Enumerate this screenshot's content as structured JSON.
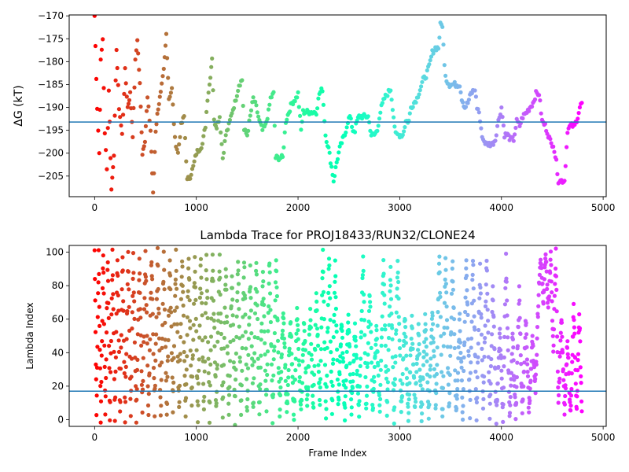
{
  "chart_data": [
    {
      "type": "scatter",
      "title": "",
      "xlabel": "",
      "ylabel": "ΔG (kT)",
      "xlim": [
        -250,
        5030
      ],
      "ylim": [
        -209.5,
        -169.8
      ],
      "xticks": [
        0,
        1000,
        2000,
        3000,
        4000,
        5000
      ],
      "yticks": [
        -205,
        -200,
        -195,
        -190,
        -185,
        -180,
        -175,
        -170
      ],
      "hline": -193.2,
      "grid": false,
      "x_max": 4790,
      "colormap": "rainbow (red at frame 0 → violet at end)",
      "trace": [
        [
          0,
          -170
        ],
        [
          25,
          -190
        ],
        [
          45,
          -200
        ],
        [
          60,
          -180
        ],
        [
          80,
          -175
        ],
        [
          100,
          -196
        ],
        [
          120,
          -203
        ],
        [
          140,
          -186
        ],
        [
          165,
          -208
        ],
        [
          190,
          -200
        ],
        [
          215,
          -177
        ],
        [
          240,
          -190
        ],
        [
          270,
          -196
        ],
        [
          300,
          -182
        ],
        [
          325,
          -190
        ],
        [
          350,
          -187
        ],
        [
          375,
          -196
        ],
        [
          400,
          -180
        ],
        [
          420,
          -175
        ],
        [
          445,
          -185
        ],
        [
          470,
          -200
        ],
        [
          495,
          -197
        ],
        [
          520,
          -188
        ],
        [
          550,
          -195
        ],
        [
          575,
          -209
        ],
        [
          600,
          -195
        ],
        [
          625,
          -190
        ],
        [
          650,
          -187
        ],
        [
          680,
          -182
        ],
        [
          705,
          -174
        ],
        [
          730,
          -188
        ],
        [
          760,
          -186
        ],
        [
          790,
          -197
        ],
        [
          820,
          -200
        ],
        [
          850,
          -194
        ],
        [
          880,
          -192
        ],
        [
          910,
          -206
        ],
        [
          940,
          -205
        ],
        [
          970,
          -203
        ],
        [
          1000,
          -200
        ],
        [
          1030,
          -199
        ],
        [
          1060,
          -198
        ],
        [
          1090,
          -194
        ],
        [
          1110,
          -188
        ],
        [
          1130,
          -185
        ],
        [
          1155,
          -179
        ],
        [
          1175,
          -193
        ],
        [
          1200,
          -194
        ],
        [
          1230,
          -192
        ],
        [
          1260,
          -201
        ],
        [
          1290,
          -196
        ],
        [
          1320,
          -194
        ],
        [
          1350,
          -191
        ],
        [
          1380,
          -189
        ],
        [
          1420,
          -185
        ],
        [
          1450,
          -184
        ],
        [
          1470,
          -195
        ],
        [
          1500,
          -196
        ],
        [
          1530,
          -192
        ],
        [
          1560,
          -188
        ],
        [
          1590,
          -190
        ],
        [
          1620,
          -193
        ],
        [
          1650,
          -195
        ],
        [
          1680,
          -194
        ],
        [
          1710,
          -191
        ],
        [
          1730,
          -188
        ],
        [
          1760,
          -187
        ],
        [
          1780,
          -201
        ],
        [
          1820,
          -201
        ],
        [
          1850,
          -201
        ],
        [
          1880,
          -193
        ],
        [
          1910,
          -191
        ],
        [
          1940,
          -189
        ],
        [
          1980,
          -188
        ],
        [
          2000,
          -187
        ],
        [
          2030,
          -195
        ],
        [
          2050,
          -191
        ],
        [
          2080,
          -191
        ],
        [
          2110,
          -191
        ],
        [
          2150,
          -191
        ],
        [
          2180,
          -191
        ],
        [
          2210,
          -187
        ],
        [
          2240,
          -186
        ],
        [
          2270,
          -196
        ],
        [
          2300,
          -199
        ],
        [
          2330,
          -203
        ],
        [
          2350,
          -206
        ],
        [
          2380,
          -202
        ],
        [
          2410,
          -199
        ],
        [
          2440,
          -197
        ],
        [
          2460,
          -196
        ],
        [
          2490,
          -193
        ],
        [
          2510,
          -192
        ],
        [
          2540,
          -195
        ],
        [
          2560,
          -195
        ],
        [
          2580,
          -193
        ],
        [
          2600,
          -192
        ],
        [
          2620,
          -192
        ],
        [
          2650,
          -192
        ],
        [
          2690,
          -192
        ],
        [
          2720,
          -196
        ],
        [
          2750,
          -196
        ],
        [
          2780,
          -195
        ],
        [
          2800,
          -192
        ],
        [
          2820,
          -190
        ],
        [
          2850,
          -188
        ],
        [
          2880,
          -187
        ],
        [
          2910,
          -186
        ],
        [
          2930,
          -190
        ],
        [
          2960,
          -196
        ],
        [
          3000,
          -196
        ],
        [
          3030,
          -196
        ],
        [
          3060,
          -193
        ],
        [
          3090,
          -193
        ],
        [
          3110,
          -190
        ],
        [
          3140,
          -189
        ],
        [
          3170,
          -188
        ],
        [
          3200,
          -186
        ],
        [
          3230,
          -184
        ],
        [
          3260,
          -183
        ],
        [
          3290,
          -181
        ],
        [
          3320,
          -178
        ],
        [
          3350,
          -177
        ],
        [
          3380,
          -177
        ],
        [
          3400,
          -172
        ],
        [
          3420,
          -172
        ],
        [
          3440,
          -181
        ],
        [
          3460,
          -184
        ],
        [
          3490,
          -185
        ],
        [
          3520,
          -185
        ],
        [
          3550,
          -185
        ],
        [
          3590,
          -185
        ],
        [
          3610,
          -188
        ],
        [
          3640,
          -190
        ],
        [
          3670,
          -189
        ],
        [
          3700,
          -187
        ],
        [
          3740,
          -186
        ],
        [
          3760,
          -190
        ],
        [
          3780,
          -191
        ],
        [
          3800,
          -195
        ],
        [
          3820,
          -197
        ],
        [
          3850,
          -198
        ],
        [
          3880,
          -198
        ],
        [
          3910,
          -198
        ],
        [
          3940,
          -197
        ],
        [
          3960,
          -194
        ],
        [
          3980,
          -192
        ],
        [
          4000,
          -190
        ],
        [
          4030,
          -196
        ],
        [
          4060,
          -196
        ],
        [
          4090,
          -197
        ],
        [
          4120,
          -197
        ],
        [
          4150,
          -193
        ],
        [
          4180,
          -194
        ],
        [
          4210,
          -192
        ],
        [
          4250,
          -191
        ],
        [
          4280,
          -190
        ],
        [
          4310,
          -189
        ],
        [
          4340,
          -187
        ],
        [
          4370,
          -187
        ],
        [
          4400,
          -193
        ],
        [
          4430,
          -194
        ],
        [
          4460,
          -196
        ],
        [
          4490,
          -198
        ],
        [
          4510,
          -198
        ],
        [
          4540,
          -202
        ],
        [
          4560,
          -206
        ],
        [
          4590,
          -206
        ],
        [
          4620,
          -206
        ],
        [
          4650,
          -195
        ],
        [
          4680,
          -194
        ],
        [
          4700,
          -194
        ],
        [
          4720,
          -194
        ],
        [
          4750,
          -192
        ],
        [
          4770,
          -190
        ],
        [
          4790,
          -189
        ]
      ]
    },
    {
      "type": "scatter",
      "title": "Lambda Trace for PROJ18433/RUN32/CLONE24",
      "xlabel": "Frame Index",
      "ylabel": "Lambda Index",
      "xlim": [
        -250,
        5030
      ],
      "ylim": [
        -4,
        104
      ],
      "xticks": [
        0,
        1000,
        2000,
        3000,
        4000,
        5000
      ],
      "yticks": [
        0,
        20,
        40,
        60,
        80,
        100
      ],
      "hline": 17,
      "grid": false,
      "x_max": 4790,
      "colormap": "rainbow (red at frame 0 → violet at end)",
      "sweeps": [
        [
          0,
          99
        ],
        [
          18,
          5
        ],
        [
          40,
          99
        ],
        [
          60,
          2
        ],
        [
          85,
          99
        ],
        [
          105,
          3
        ],
        [
          130,
          98
        ],
        [
          150,
          2
        ],
        [
          175,
          99
        ],
        [
          200,
          1
        ],
        [
          225,
          98
        ],
        [
          250,
          3
        ],
        [
          275,
          99
        ],
        [
          300,
          2
        ],
        [
          330,
          98
        ],
        [
          355,
          5
        ],
        [
          380,
          99
        ],
        [
          410,
          1
        ],
        [
          440,
          97
        ],
        [
          470,
          6
        ],
        [
          500,
          99
        ],
        [
          530,
          3
        ],
        [
          560,
          98
        ],
        [
          590,
          6
        ],
        [
          620,
          98
        ],
        [
          650,
          3
        ],
        [
          680,
          96
        ],
        [
          710,
          2
        ],
        [
          740,
          98
        ],
        [
          770,
          8
        ],
        [
          800,
          97
        ],
        [
          830,
          4
        ],
        [
          860,
          98
        ],
        [
          895,
          2
        ],
        [
          925,
          98
        ],
        [
          955,
          6
        ],
        [
          985,
          95
        ],
        [
          1015,
          2
        ],
        [
          1045,
          98
        ],
        [
          1075,
          3
        ],
        [
          1100,
          97
        ],
        [
          1130,
          2
        ],
        [
          1160,
          98
        ],
        [
          1195,
          6
        ],
        [
          1230,
          95
        ],
        [
          1260,
          3
        ],
        [
          1290,
          92
        ],
        [
          1320,
          2
        ],
        [
          1350,
          88
        ],
        [
          1380,
          1
        ],
        [
          1410,
          95
        ],
        [
          1440,
          3
        ],
        [
          1470,
          98
        ],
        [
          1500,
          1
        ],
        [
          1530,
          90
        ],
        [
          1560,
          4
        ],
        [
          1590,
          98
        ],
        [
          1620,
          2
        ],
        [
          1655,
          86
        ],
        [
          1690,
          6
        ],
        [
          1720,
          97
        ],
        [
          1750,
          2
        ],
        [
          1785,
          94
        ],
        [
          1820,
          5
        ],
        [
          1855,
          65
        ],
        [
          1890,
          2
        ],
        [
          1925,
          60
        ],
        [
          1960,
          2
        ],
        [
          1990,
          65
        ],
        [
          2030,
          2
        ],
        [
          2060,
          60
        ],
        [
          2090,
          5
        ],
        [
          2120,
          65
        ],
        [
          2150,
          3
        ],
        [
          2180,
          75
        ],
        [
          2215,
          8
        ],
        [
          2245,
          99
        ],
        [
          2275,
          1
        ],
        [
          2305,
          97
        ],
        [
          2335,
          3
        ],
        [
          2365,
          93
        ],
        [
          2395,
          6
        ],
        [
          2430,
          60
        ],
        [
          2460,
          2
        ],
        [
          2495,
          64
        ],
        [
          2525,
          4
        ],
        [
          2560,
          56
        ],
        [
          2600,
          1
        ],
        [
          2640,
          97
        ],
        [
          2670,
          3
        ],
        [
          2705,
          78
        ],
        [
          2735,
          6
        ],
        [
          2770,
          54
        ],
        [
          2805,
          2
        ],
        [
          2840,
          96
        ],
        [
          2875,
          5
        ],
        [
          2910,
          88
        ],
        [
          2945,
          2
        ],
        [
          2980,
          96
        ],
        [
          3015,
          4
        ],
        [
          3050,
          62
        ],
        [
          3085,
          2
        ],
        [
          3120,
          58
        ],
        [
          3150,
          5
        ],
        [
          3185,
          54
        ],
        [
          3215,
          1
        ],
        [
          3250,
          60
        ],
        [
          3285,
          2
        ],
        [
          3320,
          64
        ],
        [
          3355,
          5
        ],
        [
          3390,
          99
        ],
        [
          3420,
          1
        ],
        [
          3450,
          97
        ],
        [
          3485,
          4
        ],
        [
          3520,
          94
        ],
        [
          3555,
          2
        ],
        [
          3590,
          62
        ],
        [
          3620,
          3
        ],
        [
          3655,
          97
        ],
        [
          3690,
          5
        ],
        [
          3720,
          98
        ],
        [
          3755,
          2
        ],
        [
          3790,
          90
        ],
        [
          3820,
          6
        ],
        [
          3855,
          96
        ],
        [
          3885,
          2
        ],
        [
          3915,
          78
        ],
        [
          3950,
          1
        ],
        [
          3985,
          52
        ],
        [
          4015,
          3
        ],
        [
          4045,
          96
        ],
        [
          4080,
          2
        ],
        [
          4110,
          50
        ],
        [
          4140,
          1
        ],
        [
          4175,
          76
        ],
        [
          4205,
          3
        ],
        [
          4240,
          60
        ],
        [
          4270,
          5
        ],
        [
          4305,
          48
        ],
        [
          4335,
          20
        ],
        [
          4360,
          65
        ],
        [
          4385,
          99
        ],
        [
          4410,
          70
        ],
        [
          4435,
          99
        ],
        [
          4460,
          65
        ],
        [
          4485,
          99
        ],
        [
          4510,
          40
        ],
        [
          4535,
          99
        ],
        [
          4560,
          8
        ],
        [
          4590,
          60
        ],
        [
          4620,
          5
        ],
        [
          4650,
          48
        ],
        [
          4680,
          1
        ],
        [
          4710,
          66
        ],
        [
          4740,
          3
        ],
        [
          4765,
          65
        ],
        [
          4790,
          5
        ]
      ]
    }
  ]
}
